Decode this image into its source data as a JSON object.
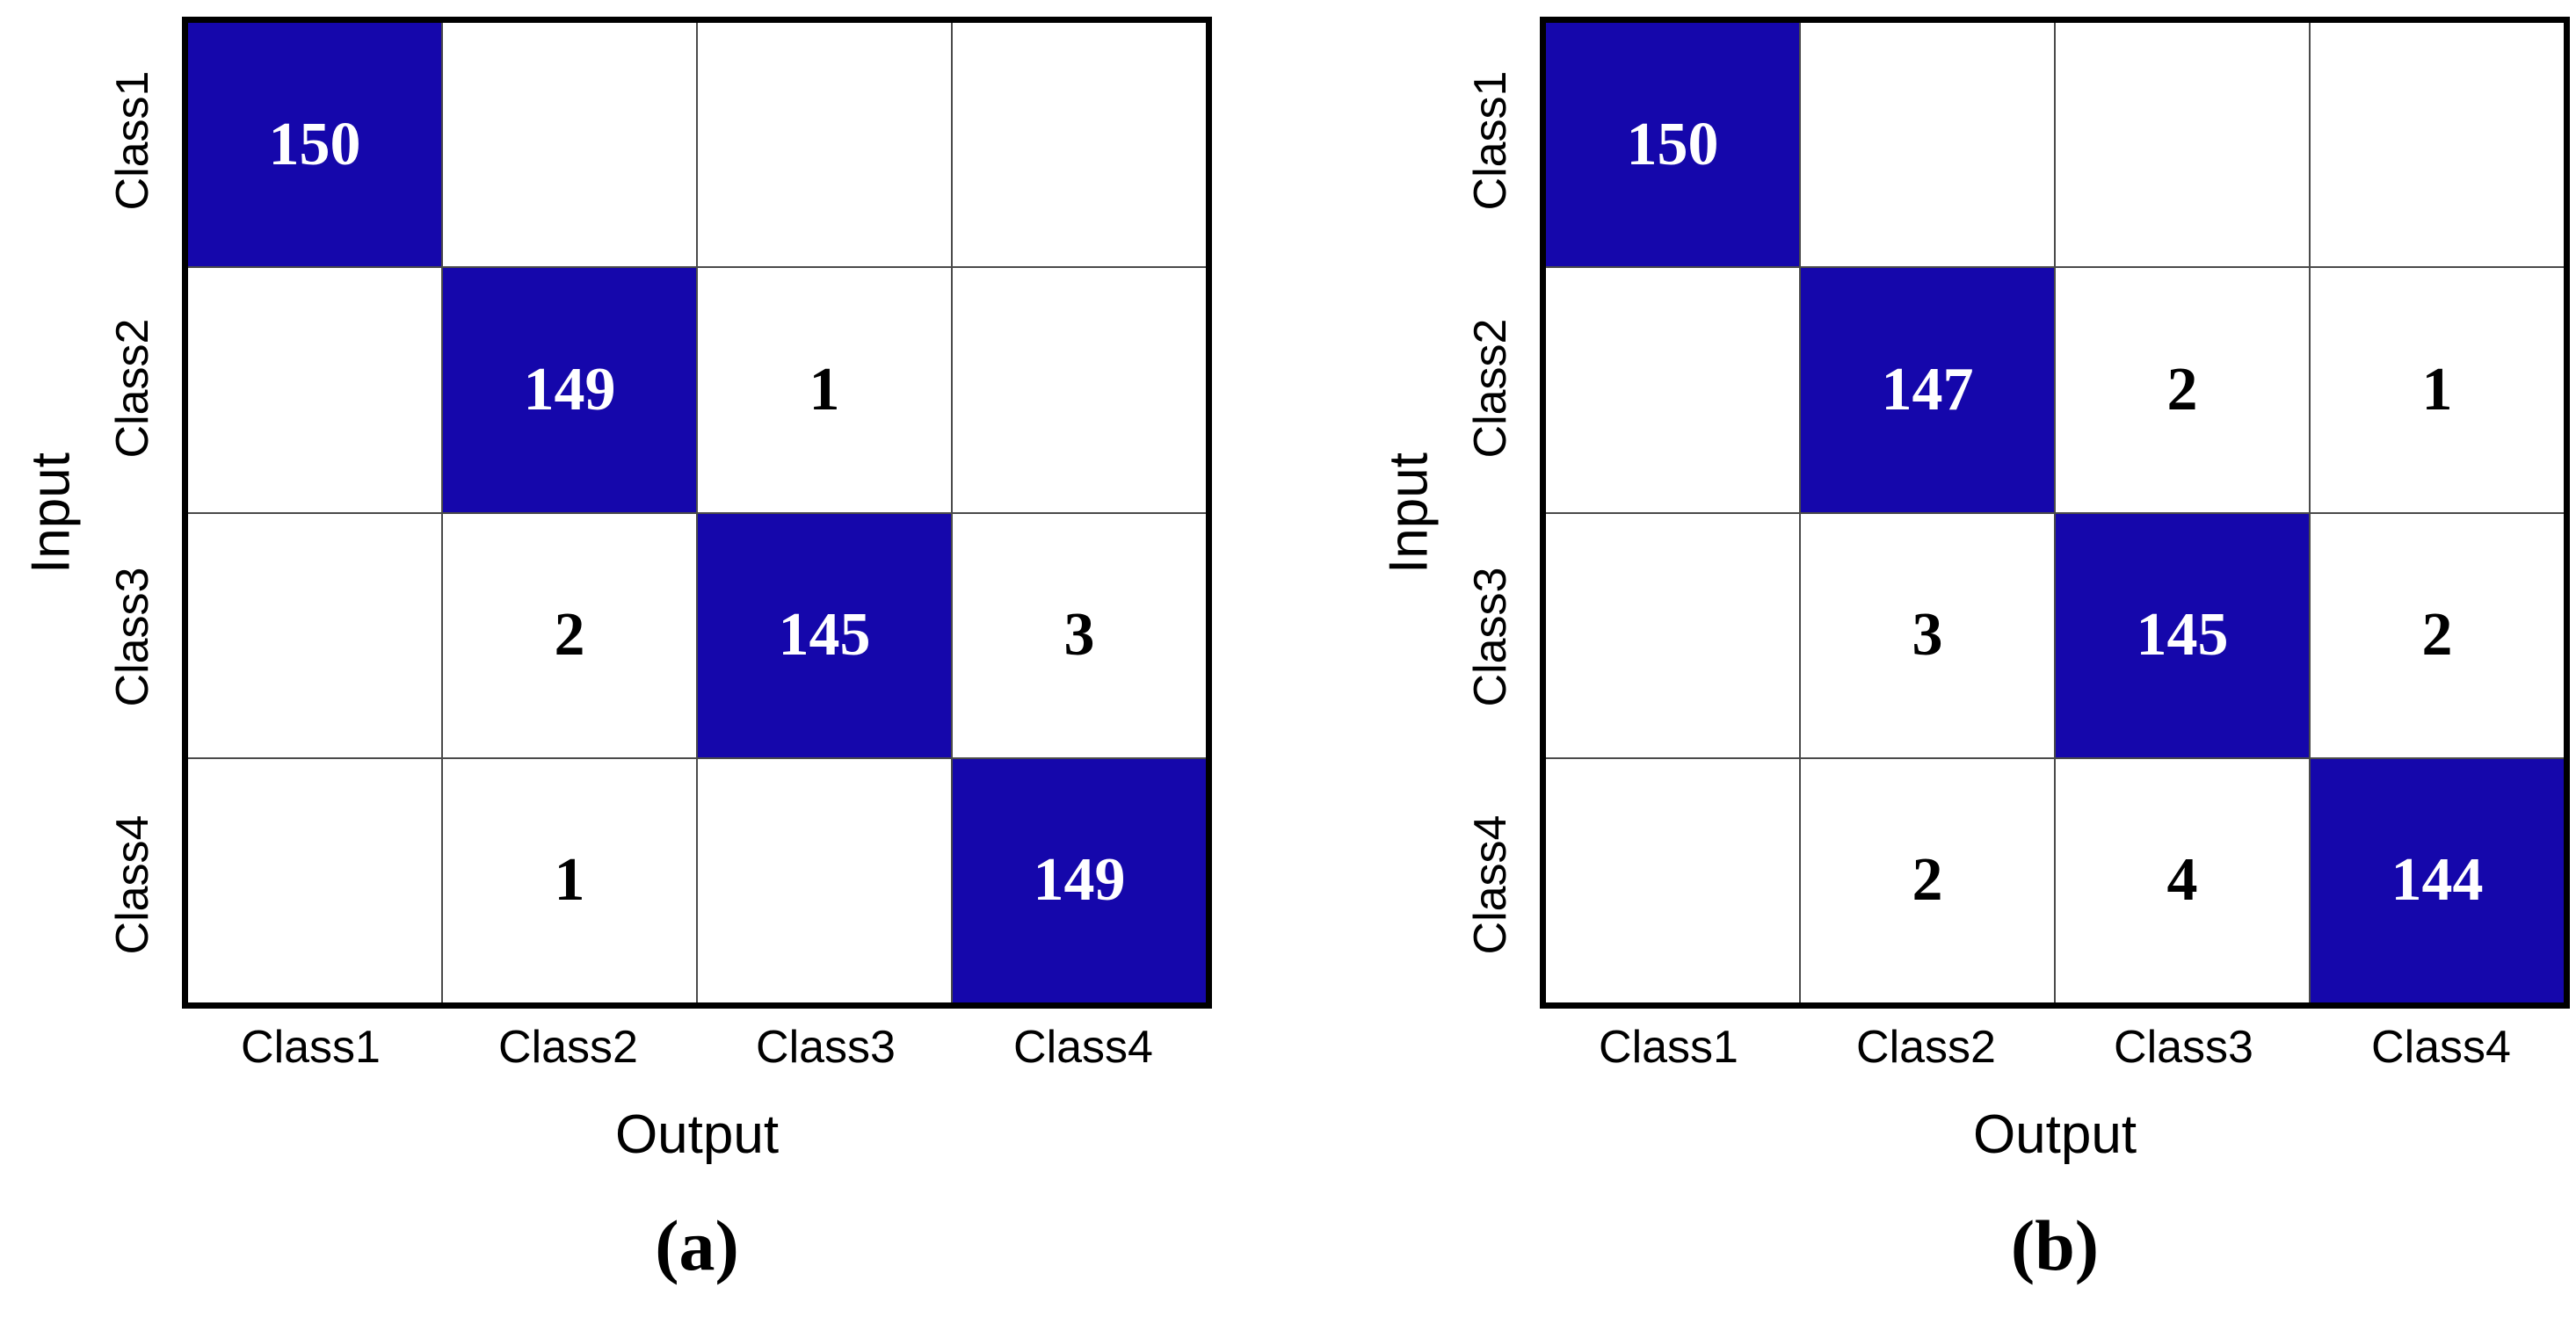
{
  "figure": {
    "colors": {
      "diagonal_fill": "#1507AB",
      "diagonal_text": "#FFFFFF",
      "offdiagonal_text": "#000000",
      "grid_line": "#4A4A4A",
      "outer_border": "#000000",
      "background": "#FFFFFF"
    },
    "panels": [
      {
        "caption": "(a)",
        "x_axis_title": "Output",
        "y_axis_title": "Input",
        "x_tick_labels": [
          "Class1",
          "Class2",
          "Class3",
          "Class4"
        ],
        "y_tick_labels": [
          "Class1",
          "Class2",
          "Class3",
          "Class4"
        ],
        "rows": [
          [
            "150",
            "",
            "",
            ""
          ],
          [
            "",
            "149",
            "1",
            ""
          ],
          [
            "",
            "2",
            "145",
            "3"
          ],
          [
            "",
            "1",
            "",
            "149"
          ]
        ]
      },
      {
        "caption": "(b)",
        "x_axis_title": "Output",
        "y_axis_title": "Input",
        "x_tick_labels": [
          "Class1",
          "Class2",
          "Class3",
          "Class4"
        ],
        "y_tick_labels": [
          "Class1",
          "Class2",
          "Class3",
          "Class4"
        ],
        "rows": [
          [
            "150",
            "",
            "",
            ""
          ],
          [
            "",
            "147",
            "2",
            "1"
          ],
          [
            "",
            "3",
            "145",
            "2"
          ],
          [
            "",
            "2",
            "4",
            "144"
          ]
        ]
      }
    ]
  },
  "chart_data": [
    {
      "type": "heatmap",
      "title": "(a)",
      "xlabel": "Output",
      "ylabel": "Input",
      "x_categories": [
        "Class1",
        "Class2",
        "Class3",
        "Class4"
      ],
      "y_categories": [
        "Class1",
        "Class2",
        "Class3",
        "Class4"
      ],
      "values": [
        [
          150,
          null,
          null,
          null
        ],
        [
          null,
          149,
          1,
          null
        ],
        [
          null,
          2,
          145,
          3
        ],
        [
          null,
          1,
          null,
          149
        ]
      ],
      "notes": "Confusion matrix; blank cells show no number; diagonal cells filled #1507AB with white bold numbers; off-diagonal numbers black on white",
      "legend": "none",
      "grid": true
    },
    {
      "type": "heatmap",
      "title": "(b)",
      "xlabel": "Output",
      "ylabel": "Input",
      "x_categories": [
        "Class1",
        "Class2",
        "Class3",
        "Class4"
      ],
      "y_categories": [
        "Class1",
        "Class2",
        "Class3",
        "Class4"
      ],
      "values": [
        [
          150,
          null,
          null,
          null
        ],
        [
          null,
          147,
          2,
          1
        ],
        [
          null,
          3,
          145,
          2
        ],
        [
          null,
          2,
          4,
          144
        ]
      ],
      "notes": "Confusion matrix; blank cells show no number; diagonal cells filled #1507AB with white bold numbers; off-diagonal numbers black on white",
      "legend": "none",
      "grid": true
    }
  ]
}
